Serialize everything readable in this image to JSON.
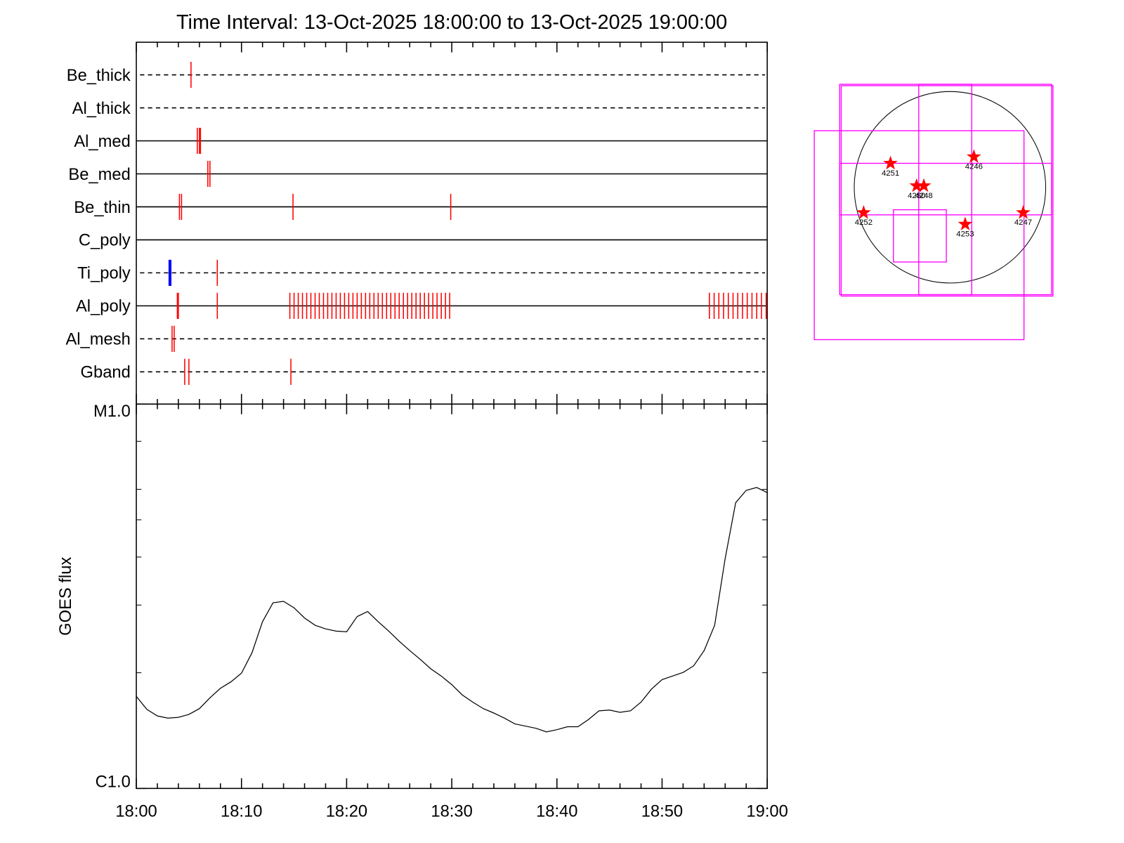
{
  "chart_data": [
    {
      "type": "events",
      "title": "Time Interval: 13-Oct-2025 18:00:00 to 13-Oct-2025 19:00:00",
      "xlim": [
        0,
        60
      ],
      "rows": [
        {
          "name": "Be_thick",
          "style": "dashed",
          "events": [
            {
              "color": "#ff0000",
              "x": [
                5.2
              ]
            }
          ]
        },
        {
          "name": "Al_thick",
          "style": "dashed",
          "events": []
        },
        {
          "name": "Al_med",
          "style": "solid",
          "events": [
            {
              "color": "#ff0000",
              "x": [
                5.8,
                6.0,
                6.1
              ]
            }
          ]
        },
        {
          "name": "Be_med",
          "style": "solid",
          "events": [
            {
              "color": "#ff0000",
              "x": [
                6.8,
                7.0
              ]
            }
          ]
        },
        {
          "name": "Be_thin",
          "style": "solid",
          "events": [
            {
              "color": "#ff0000",
              "x": [
                4.1,
                4.3,
                14.9,
                29.9
              ]
            }
          ]
        },
        {
          "name": "C_poly",
          "style": "solid",
          "events": []
        },
        {
          "name": "Ti_poly",
          "style": "dashed",
          "events": [
            {
              "color": "#0000ff",
              "x": [
                3.2
              ]
            },
            {
              "color": "#ff0000",
              "x": [
                7.7
              ]
            }
          ]
        },
        {
          "name": "Al_poly",
          "style": "solid",
          "events": [
            {
              "color": "#ff0000",
              "x": [
                3.9,
                4.0,
                7.7,
                14.6,
                15.0,
                15.4,
                15.8,
                16.2,
                16.6,
                17.0,
                17.4,
                17.8,
                18.2,
                18.6,
                19.0,
                19.4,
                19.8,
                20.2,
                20.6,
                21.0,
                21.4,
                21.8,
                22.2,
                22.6,
                23.0,
                23.4,
                23.8,
                24.2,
                24.6,
                25.0,
                25.4,
                25.8,
                26.2,
                26.6,
                27.0,
                27.4,
                27.8,
                28.2,
                28.6,
                29.0,
                29.4,
                29.8,
                54.5,
                54.95,
                55.4,
                55.85,
                56.3,
                56.75,
                57.2,
                57.65,
                58.1,
                58.55,
                59.0,
                59.45,
                59.9
              ]
            }
          ]
        },
        {
          "name": "Al_mesh",
          "style": "dashed",
          "events": [
            {
              "color": "#ff0000",
              "x": [
                3.4,
                3.6
              ]
            }
          ]
        },
        {
          "name": "Gband",
          "style": "dashed",
          "events": [
            {
              "color": "#ff0000",
              "x": [
                4.6,
                5.0,
                14.7
              ]
            }
          ]
        }
      ]
    },
    {
      "type": "line",
      "ylabel": "GOES flux",
      "color": "#000000",
      "log_y": true,
      "xlim": [
        0,
        60
      ],
      "xticks": [
        {
          "value": 0,
          "label": "18:00"
        },
        {
          "value": 10,
          "label": "18:10"
        },
        {
          "value": 20,
          "label": "18:20"
        },
        {
          "value": 30,
          "label": "18:30"
        },
        {
          "value": 40,
          "label": "18:40"
        },
        {
          "value": 50,
          "label": "18:50"
        },
        {
          "value": 60,
          "label": "19:00"
        }
      ],
      "xticks_minor": [
        2,
        4,
        6,
        8,
        12,
        14,
        16,
        18,
        22,
        24,
        26,
        28,
        32,
        34,
        36,
        38,
        42,
        44,
        46,
        48,
        52,
        54,
        56,
        58
      ],
      "ylim": [
        1e-06,
        1e-05
      ],
      "yticks": [
        {
          "value": 1e-06,
          "label": "C1.0"
        },
        {
          "value": 1e-05,
          "label": "M1.0"
        }
      ],
      "yticks_minor": [
        2e-06,
        3e-06,
        4e-06,
        5e-06,
        6e-06,
        8e-06
      ],
      "x": [
        0,
        1,
        2,
        3,
        4,
        5,
        6,
        7,
        8,
        9,
        10,
        11,
        12,
        13,
        14,
        15,
        16,
        17,
        18,
        19,
        20,
        21,
        22,
        23,
        24,
        25,
        26,
        27,
        28,
        29,
        30,
        31,
        32,
        33,
        34,
        35,
        36,
        37,
        38,
        39,
        40,
        41,
        42,
        43,
        44,
        45,
        46,
        47,
        48,
        49,
        50,
        51,
        52,
        53,
        54,
        55,
        56,
        57,
        58,
        59,
        60
      ],
      "values": [
        1.736e-06,
        1.606e-06,
        1.544e-06,
        1.524e-06,
        1.531e-06,
        1.558e-06,
        1.613e-06,
        1.721e-06,
        1.822e-06,
        1.894e-06,
        1.995e-06,
        2.254e-06,
        2.716e-06,
        3.041e-06,
        3.068e-06,
        2.951e-06,
        2.776e-06,
        2.658e-06,
        2.601e-06,
        2.567e-06,
        2.556e-06,
        2.8e-06,
        2.886e-06,
        2.716e-06,
        2.567e-06,
        2.415e-06,
        2.284e-06,
        2.167e-06,
        2.048e-06,
        1.961e-06,
        1.862e-06,
        1.751e-06,
        1.677e-06,
        1.613e-06,
        1.571e-06,
        1.524e-06,
        1.472e-06,
        1.453e-06,
        1.434e-06,
        1.403e-06,
        1.422e-06,
        1.447e-06,
        1.447e-06,
        1.511e-06,
        1.592e-06,
        1.599e-06,
        1.578e-06,
        1.592e-06,
        1.677e-06,
        1.814e-06,
        1.919e-06,
        1.961e-06,
        2.004e-06,
        2.084e-06,
        2.284e-06,
        2.658e-06,
        3.964e-06,
        5.54e-06,
        5.965e-06,
        6.067e-06,
        5.886e-06
      ]
    },
    {
      "type": "map",
      "disk_radius": 975,
      "box_color": "#ff00ff",
      "star_color": "#ff0000",
      "boxes": [
        {
          "x": [
            -1123,
            1035
          ],
          "y": [
            -1094,
            1049
          ]
        },
        {
          "x": [
            -1108,
            1049
          ],
          "y": [
            -1108,
            1035
          ]
        },
        {
          "x": [
            -318,
            222
          ],
          "y": [
            -1094,
            1049
          ]
        },
        {
          "x": [
            -1123,
            1035
          ],
          "y": [
            -281,
            244
          ]
        },
        {
          "x": [
            -1382,
            754
          ],
          "y": [
            -1552,
            576
          ]
        },
        {
          "x": [
            -576,
            -37
          ],
          "y": [
            -761,
            -229
          ]
        }
      ],
      "regions": [
        {
          "name": "4251",
          "x": -606,
          "y": 244
        },
        {
          "name": "4246",
          "x": 244,
          "y": 310
        },
        {
          "name": "4250",
          "x": -340,
          "y": 15
        },
        {
          "name": "4248",
          "x": -266,
          "y": 15
        },
        {
          "name": "4252",
          "x": -879,
          "y": -259
        },
        {
          "name": "4253",
          "x": 155,
          "y": -377
        },
        {
          "name": "4247",
          "x": 746,
          "y": -259
        }
      ]
    }
  ]
}
